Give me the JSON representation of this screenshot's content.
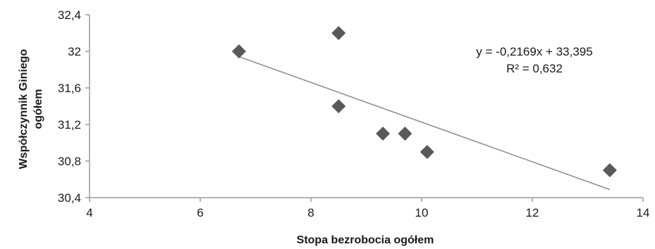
{
  "chart_data": {
    "type": "scatter",
    "xlabel": "Stopa bezrobocia ogółem",
    "ylabel": [
      "Współczynnik Giniego",
      "ogółem"
    ],
    "xlim": [
      4,
      14
    ],
    "ylim": [
      30.4,
      32.4
    ],
    "x_ticks": [
      {
        "value": 4,
        "label": "4"
      },
      {
        "value": 6,
        "label": "6"
      },
      {
        "value": 8,
        "label": "8"
      },
      {
        "value": 10,
        "label": "10"
      },
      {
        "value": 12,
        "label": "12"
      },
      {
        "value": 14,
        "label": "14"
      }
    ],
    "y_ticks": [
      {
        "value": 30.4,
        "label": "30,4"
      },
      {
        "value": 30.8,
        "label": "30,8"
      },
      {
        "value": 31.2,
        "label": "31,2"
      },
      {
        "value": 31.6,
        "label": "31,6"
      },
      {
        "value": 32.0,
        "label": "32"
      },
      {
        "value": 32.4,
        "label": "32,4"
      }
    ],
    "points": [
      {
        "x": 6.7,
        "y": 32.0
      },
      {
        "x": 8.5,
        "y": 32.2
      },
      {
        "x": 8.5,
        "y": 31.4
      },
      {
        "x": 9.3,
        "y": 31.1
      },
      {
        "x": 9.7,
        "y": 31.1
      },
      {
        "x": 10.1,
        "y": 30.9
      },
      {
        "x": 13.4,
        "y": 30.7
      }
    ],
    "trendline": {
      "type": "linear",
      "slope": -0.2169,
      "intercept": 33.395,
      "x_range": [
        6.7,
        13.4
      ],
      "equation": "y = -0,2169x  + 33,395",
      "r_squared": "R² = 0,632"
    },
    "marker": "diamond",
    "marker_color": "#595959",
    "line_color": "#8c8c8c",
    "axis_color": "#9a9a9a",
    "grid": false,
    "legend": "none"
  }
}
